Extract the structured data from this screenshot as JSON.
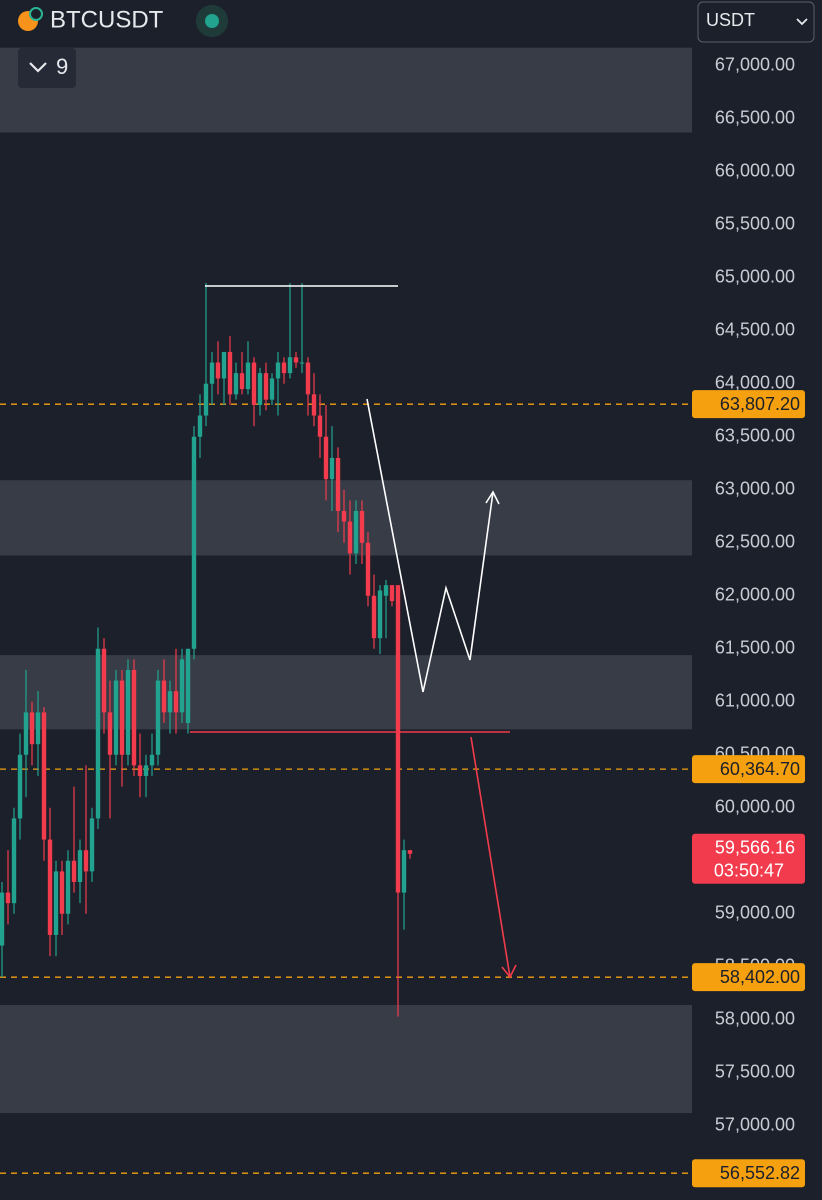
{
  "header": {
    "symbol": "BTCUSDT",
    "count": "9",
    "currency": "USDT"
  },
  "chart_data": {
    "type": "candlestick",
    "up_color": "#22a38f",
    "down_color": "#f23b4c",
    "ylim": [
      56300,
      67620
    ],
    "yticks": [
      {
        "value": 57000,
        "label": "57,000.00"
      },
      {
        "value": 57500,
        "label": "57,500.00"
      },
      {
        "value": 58000,
        "label": "58,000.00"
      },
      {
        "value": 58500,
        "label": "58,500.00"
      },
      {
        "value": 59000,
        "label": "59,000.00"
      },
      {
        "value": 59500,
        "label": "59,500.00"
      },
      {
        "value": 60000,
        "label": "60,000.00"
      },
      {
        "value": 60500,
        "label": "60,500.00"
      },
      {
        "value": 61000,
        "label": "61,000.00"
      },
      {
        "value": 61500,
        "label": "61,500.00"
      },
      {
        "value": 62000,
        "label": "62,000.00"
      },
      {
        "value": 62500,
        "label": "62,500.00"
      },
      {
        "value": 63000,
        "label": "63,000.00"
      },
      {
        "value": 63500,
        "label": "63,500.00"
      },
      {
        "value": 64000,
        "label": "64,000.00"
      },
      {
        "value": 64500,
        "label": "64,500.00"
      },
      {
        "value": 65000,
        "label": "65,000.00"
      },
      {
        "value": 65500,
        "label": "65,500.00"
      },
      {
        "value": 66000,
        "label": "66,000.00"
      },
      {
        "value": 66500,
        "label": "66,500.00"
      },
      {
        "value": 67000,
        "label": "67,000.00"
      }
    ],
    "zones": [
      [
        66370,
        67170
      ],
      [
        62380,
        63090
      ],
      [
        60740,
        61440
      ],
      [
        57120,
        58140
      ]
    ],
    "levels": [
      {
        "value": 63807.2,
        "label": "63,807.20"
      },
      {
        "value": 60364.7,
        "label": "60,364.70"
      },
      {
        "value": 58402,
        "label": "58,402.00"
      },
      {
        "value": 56552.82,
        "label": "56,552.82"
      }
    ],
    "last_price": {
      "value": 59566.16,
      "label": "59,566.16"
    },
    "countdown": "03:50:47",
    "open": [
      58700,
      59200,
      59100,
      59900,
      60500,
      60900,
      60600,
      60900,
      59700,
      58800,
      59400,
      59000,
      59500,
      59300,
      59600,
      59400,
      59900,
      61500,
      60900,
      60500,
      61200,
      60500,
      61300,
      60400,
      60300,
      60400,
      60500,
      61200,
      60900,
      61100,
      60900,
      60800,
      61500,
      63500,
      63700,
      64000,
      64200,
      64050,
      64300,
      63900,
      64100,
      63950,
      64200,
      63800,
      64100,
      63850,
      64050,
      64200,
      64100,
      64250,
      64200,
      64200,
      63900,
      63700,
      63500,
      63100,
      63300,
      62800,
      62700,
      62400,
      62800,
      62500,
      62000,
      61600,
      62000,
      62100,
      62100,
      59200,
      59600
    ],
    "high": [
      59300,
      59600,
      60000,
      60700,
      61300,
      61000,
      61100,
      60950,
      60000,
      59500,
      59500,
      59600,
      60200,
      59700,
      60400,
      60000,
      61700,
      61600,
      61200,
      61300,
      61300,
      61400,
      61400,
      60700,
      60500,
      60700,
      61300,
      61400,
      61200,
      61500,
      61500,
      61500,
      63600,
      63900,
      64950,
      64300,
      64400,
      64300,
      64450,
      64200,
      64300,
      64400,
      64250,
      64150,
      64200,
      64100,
      64300,
      64250,
      64950,
      64300,
      64950,
      64250,
      64100,
      63900,
      63800,
      63600,
      63400,
      63000,
      62900,
      62900,
      62900,
      62600,
      62200,
      62100,
      62150,
      62100,
      62100,
      59700,
      59600
    ],
    "low": [
      58400,
      58900,
      59000,
      59700,
      60100,
      60400,
      60300,
      59500,
      58600,
      58600,
      58800,
      58900,
      59200,
      59100,
      59000,
      59300,
      59800,
      60700,
      59900,
      60400,
      60200,
      60400,
      60300,
      60100,
      60100,
      60300,
      60400,
      60800,
      60700,
      60700,
      60800,
      60700,
      61400,
      63300,
      63600,
      63800,
      63900,
      63800,
      63800,
      63850,
      63900,
      63900,
      63600,
      63700,
      63750,
      63800,
      63700,
      64000,
      64050,
      64150,
      64100,
      63700,
      63600,
      63300,
      62900,
      62800,
      62600,
      62500,
      62200,
      62300,
      62300,
      61900,
      61500,
      61450,
      61600,
      61900,
      58030,
      58850,
      59520
    ],
    "close": [
      59200,
      59100,
      59900,
      60500,
      60900,
      60600,
      60900,
      59700,
      58800,
      59400,
      59000,
      59500,
      59300,
      59600,
      59400,
      59900,
      61500,
      60900,
      60500,
      61200,
      60500,
      61300,
      60400,
      60300,
      60400,
      60500,
      61200,
      60900,
      61100,
      60900,
      61400,
      61500,
      63500,
      63700,
      64000,
      64200,
      64050,
      64300,
      63900,
      64100,
      63950,
      64200,
      63800,
      64100,
      63850,
      64050,
      64200,
      64100,
      64250,
      64200,
      64200,
      63900,
      63700,
      63500,
      63100,
      63300,
      62800,
      62700,
      62400,
      62800,
      62500,
      62000,
      61600,
      62050,
      62100,
      61950,
      59200,
      59600,
      59566.16
    ]
  }
}
